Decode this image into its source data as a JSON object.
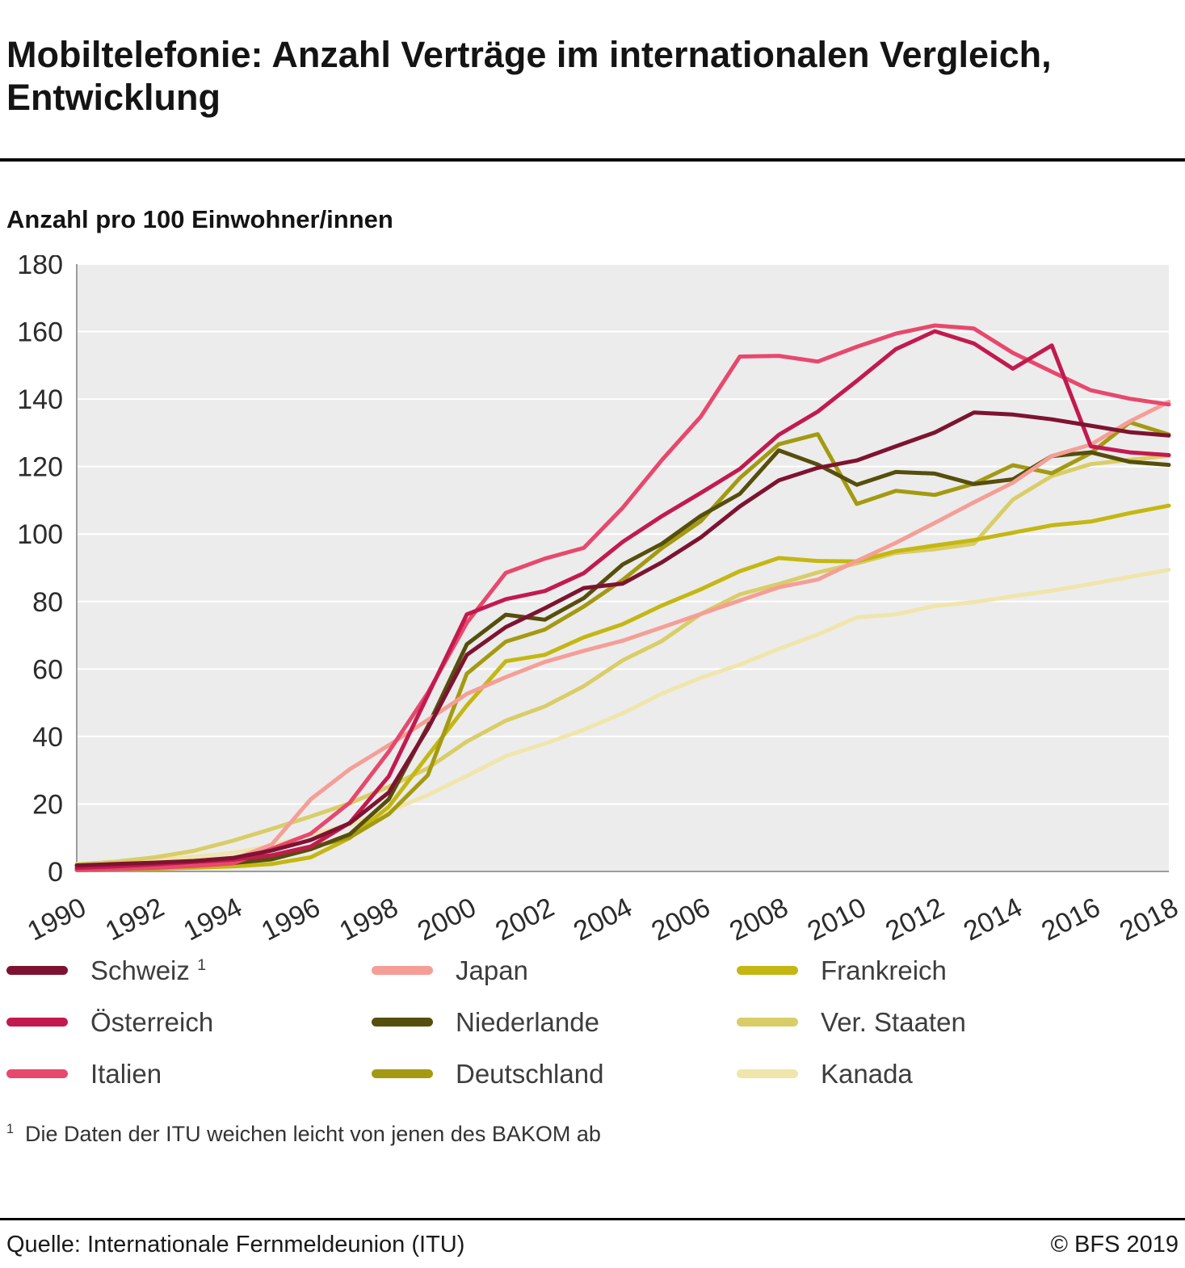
{
  "header": {
    "title": "Mobiltelefonie: Anzahl Verträge im internationalen Vergleich, Entwicklung",
    "subtitle": "Anzahl pro 100 Einwohner/innen"
  },
  "chart_data": {
    "type": "line",
    "title": "Mobiltelefonie: Anzahl Verträge im internationalen Vergleich, Entwicklung",
    "ylabel": "Anzahl pro 100 Einwohner/innen",
    "ylim": [
      0,
      180
    ],
    "ytick_step": 20,
    "grid": true,
    "plot_bg": "#ececec",
    "grid_color": "#ffffff",
    "axis_color": "#9c9c9c",
    "years": [
      1990,
      1991,
      1992,
      1993,
      1994,
      1995,
      1996,
      1997,
      1998,
      1999,
      2000,
      2001,
      2002,
      2003,
      2004,
      2005,
      2006,
      2007,
      2008,
      2009,
      2010,
      2011,
      2012,
      2013,
      2014,
      2015,
      2016,
      2017,
      2018
    ],
    "xticks": [
      1990,
      1992,
      1994,
      1996,
      1998,
      2000,
      2002,
      2004,
      2006,
      2008,
      2010,
      2012,
      2014,
      2016,
      2018
    ],
    "series": [
      {
        "name": "Kanada",
        "color": "#f0e5ab",
        "values": [
          2.2,
          2.8,
          3.4,
          4.3,
          5.5,
          7.6,
          10.9,
          13.9,
          17.8,
          22.7,
          28.3,
          34.2,
          37.9,
          42.0,
          46.9,
          52.7,
          57.4,
          61.3,
          66.0,
          70.2,
          75.3,
          76.2,
          78.7,
          79.8,
          81.6,
          83.2,
          85.2,
          87.3,
          89.4
        ]
      },
      {
        "name": "Ver. Staaten",
        "color": "#d9cd67",
        "values": [
          2.1,
          2.9,
          4.2,
          6.1,
          9.1,
          12.6,
          16.3,
          20.2,
          25.1,
          30.6,
          38.5,
          44.7,
          48.9,
          54.9,
          62.6,
          68.3,
          76.3,
          82.1,
          85.2,
          88.6,
          91.3,
          94.4,
          95.5,
          97.1,
          110.2,
          117.2,
          120.7,
          122.0,
          123.2
        ]
      },
      {
        "name": "Frankreich",
        "color": "#c4b712",
        "values": [
          0.5,
          0.7,
          0.8,
          1.1,
          1.5,
          2.2,
          4.2,
          9.9,
          19.2,
          34.3,
          49.2,
          62.3,
          64.2,
          69.4,
          73.3,
          78.8,
          83.6,
          89.0,
          92.9,
          92.0,
          91.9,
          94.9,
          96.6,
          98.2,
          100.4,
          102.6,
          103.7,
          106.2,
          108.4
        ]
      },
      {
        "name": "Deutschland",
        "color": "#a39a12",
        "values": [
          0.4,
          0.7,
          1.0,
          1.8,
          3.0,
          4.6,
          7.1,
          10.1,
          17.0,
          28.5,
          58.6,
          68.1,
          71.7,
          78.5,
          86.4,
          95.8,
          103.8,
          116.6,
          126.6,
          129.6,
          108.9,
          112.8,
          111.6,
          114.9,
          120.4,
          118.0,
          124.0,
          133.1,
          129.5
        ]
      },
      {
        "name": "Niederlande",
        "color": "#564e0c",
        "values": [
          0.5,
          0.8,
          1.2,
          1.7,
          2.5,
          3.6,
          6.6,
          11.0,
          21.4,
          43.0,
          67.3,
          76.1,
          74.6,
          81.0,
          91.0,
          97.1,
          105.4,
          111.9,
          124.8,
          120.6,
          114.6,
          118.4,
          117.9,
          114.8,
          116.2,
          123.1,
          124.2,
          121.4,
          120.5
        ]
      },
      {
        "name": "Japan",
        "color": "#f59e97",
        "values": [
          0.7,
          1.1,
          1.4,
          1.7,
          3.5,
          8.0,
          21.4,
          30.3,
          37.4,
          44.9,
          52.6,
          57.6,
          62.1,
          65.4,
          68.4,
          72.3,
          76.3,
          80.3,
          84.2,
          86.5,
          92.0,
          97.4,
          103.3,
          109.4,
          115.2,
          123.1,
          126.5,
          133.4,
          139.2
        ]
      },
      {
        "name": "Italien",
        "color": "#e8486d",
        "values": [
          0.5,
          0.8,
          1.1,
          1.6,
          2.4,
          6.7,
          11.2,
          20.4,
          35.5,
          52.9,
          73.7,
          88.5,
          92.7,
          95.9,
          107.8,
          121.9,
          134.8,
          152.6,
          152.8,
          151.1,
          155.5,
          159.4,
          161.8,
          160.9,
          153.7,
          148.1,
          142.6,
          140.1,
          138.4
        ]
      },
      {
        "name": "Österreich",
        "color": "#c21a4f",
        "values": [
          1.0,
          1.5,
          2.1,
          2.8,
          3.5,
          4.8,
          7.4,
          14.4,
          28.2,
          52.2,
          76.2,
          80.7,
          83.1,
          88.4,
          97.7,
          105.3,
          112.2,
          119.3,
          129.4,
          136.3,
          145.4,
          154.8,
          160.1,
          156.5,
          149.0,
          155.9,
          126.0,
          124.2,
          123.4
        ]
      },
      {
        "name": "Schweiz",
        "color": "#7d1331",
        "values": [
          1.8,
          2.2,
          2.6,
          3.1,
          4.0,
          6.2,
          9.3,
          14.3,
          23.4,
          42.3,
          64.2,
          72.4,
          78.0,
          84.0,
          85.3,
          91.6,
          99.0,
          108.2,
          115.9,
          119.6,
          121.8,
          126.0,
          130.1,
          136.0,
          135.4,
          134.0,
          132.1,
          130.2,
          129.2
        ]
      }
    ]
  },
  "legend": {
    "order": [
      "Schweiz",
      "Japan",
      "Frankreich",
      "Österreich",
      "Niederlande",
      "Ver. Staaten",
      "Italien",
      "Deutschland",
      "Kanada"
    ],
    "sup": {
      "Schweiz": "1"
    }
  },
  "footnote": {
    "marker": "1",
    "text": "Die Daten der ITU weichen leicht von jenen des BAKOM ab"
  },
  "footer": {
    "source": "Quelle: Internationale Fernmeldeunion (ITU)",
    "copyright": "© BFS 2019"
  }
}
